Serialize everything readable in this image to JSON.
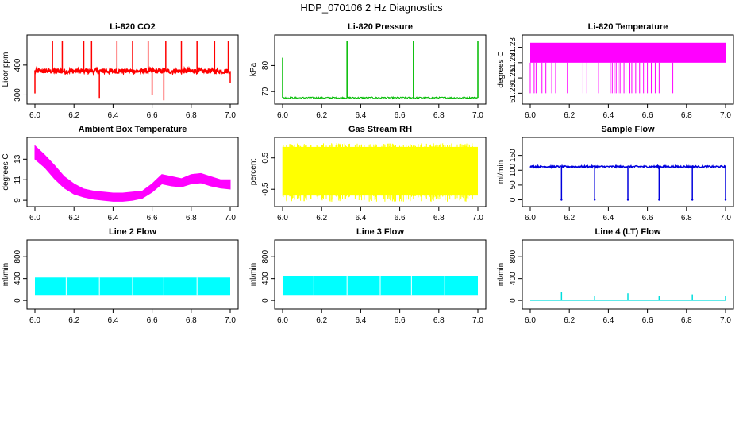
{
  "title": "HDP_070106  2 Hz Diagnostics",
  "chart_data": [
    {
      "id": "co2",
      "type": "line",
      "title": "Li-820 CO2",
      "ylabel": "Licor ppm",
      "xlim": [
        6.0,
        7.0
      ],
      "ylim": [
        280,
        490
      ],
      "xticks": [
        "6.0",
        "6.2",
        "6.4",
        "6.6",
        "6.8",
        "7.0"
      ],
      "yticks": [
        "300",
        "400"
      ],
      "color": "#ff0000",
      "baseline": 380,
      "noise": 8,
      "spikes": [
        {
          "x": 6.0,
          "y": 305
        },
        {
          "x": 6.09,
          "y": 480
        },
        {
          "x": 6.14,
          "y": 480
        },
        {
          "x": 6.25,
          "y": 480
        },
        {
          "x": 6.29,
          "y": 480
        },
        {
          "x": 6.33,
          "y": 290
        },
        {
          "x": 6.42,
          "y": 480
        },
        {
          "x": 6.5,
          "y": 480
        },
        {
          "x": 6.58,
          "y": 480
        },
        {
          "x": 6.6,
          "y": 300
        },
        {
          "x": 6.66,
          "y": 282
        },
        {
          "x": 6.67,
          "y": 480
        },
        {
          "x": 6.75,
          "y": 480
        },
        {
          "x": 6.83,
          "y": 480
        },
        {
          "x": 6.92,
          "y": 480
        },
        {
          "x": 6.99,
          "y": 480
        },
        {
          "x": 7.0,
          "y": 340
        }
      ]
    },
    {
      "id": "pressure",
      "type": "line",
      "title": "Li-820 Pressure",
      "ylabel": "kPa",
      "xlim": [
        6.0,
        7.0
      ],
      "ylim": [
        66.4,
        90.5
      ],
      "xticks": [
        "6.0",
        "6.2",
        "6.4",
        "6.6",
        "6.8",
        "7.0"
      ],
      "yticks": [
        "70",
        "80"
      ],
      "color": "#00bb00",
      "baseline": 67.6,
      "noise": 0.3,
      "spikes": [
        {
          "x": 6.0,
          "y": 83
        },
        {
          "x": 6.33,
          "y": 89.5
        },
        {
          "x": 6.67,
          "y": 89.5
        },
        {
          "x": 7.0,
          "y": 89.5
        }
      ]
    },
    {
      "id": "licor-temp",
      "type": "line",
      "title": "Li-820 Temperature",
      "ylabel": "degrees C",
      "xlim": [
        6.0,
        7.0
      ],
      "ylim": [
        51.195,
        51.236
      ],
      "xticks": [
        "6.0",
        "6.2",
        "6.4",
        "6.6",
        "6.8",
        "7.0"
      ],
      "yticks": [
        "51.20",
        "51.21",
        "51.22",
        "51.23"
      ],
      "color": "#ff00ff",
      "band": [
        51.22,
        51.233
      ],
      "drops": [
        6.0,
        6.02,
        6.03,
        6.06,
        6.08,
        6.11,
        6.13,
        6.19,
        6.27,
        6.29,
        6.35,
        6.41,
        6.42,
        6.43,
        6.44,
        6.45,
        6.46,
        6.48,
        6.49,
        6.51,
        6.52,
        6.54,
        6.56,
        6.58,
        6.6,
        6.62,
        6.64,
        6.66,
        6.73
      ],
      "drop_to": 51.2
    },
    {
      "id": "box-temp",
      "type": "area",
      "title": "Ambient Box Temperature",
      "ylabel": "degrees C",
      "xlim": [
        6.0,
        7.0
      ],
      "ylim": [
        8.7,
        14.8
      ],
      "xticks": [
        "6.0",
        "6.2",
        "6.4",
        "6.6",
        "6.8",
        "7.0"
      ],
      "yticks": [
        "9",
        "11",
        "13"
      ],
      "color": "#ff00ff",
      "x": [
        6.0,
        6.05,
        6.1,
        6.15,
        6.2,
        6.25,
        6.3,
        6.35,
        6.4,
        6.45,
        6.5,
        6.55,
        6.6,
        6.65,
        6.7,
        6.75,
        6.8,
        6.85,
        6.9,
        6.95,
        7.0
      ],
      "upper": [
        14.3,
        13.4,
        12.4,
        11.3,
        10.6,
        10.1,
        9.9,
        9.8,
        9.7,
        9.7,
        9.8,
        9.9,
        10.6,
        11.5,
        11.3,
        11.1,
        11.5,
        11.6,
        11.3,
        11.0,
        11.0
      ],
      "lower": [
        13.0,
        12.2,
        11.1,
        10.2,
        9.6,
        9.3,
        9.1,
        9.0,
        8.9,
        8.9,
        9.0,
        9.2,
        9.8,
        10.6,
        10.4,
        10.3,
        10.6,
        10.7,
        10.4,
        10.2,
        10.1
      ]
    },
    {
      "id": "rh",
      "type": "area",
      "title": "Gas Stream RH",
      "ylabel": "percent",
      "xlim": [
        6.0,
        7.0
      ],
      "ylim": [
        -0.95,
        1.05
      ],
      "xticks": [
        "6.0",
        "6.2",
        "6.4",
        "6.6",
        "6.8",
        "7.0"
      ],
      "yticks": [
        "-0.5",
        "0.5"
      ],
      "color": "#ffff00",
      "band": [
        -0.7,
        0.85
      ],
      "extreme": [
        -0.9,
        0.97
      ]
    },
    {
      "id": "sample-flow",
      "type": "line",
      "title": "Sample Flow",
      "ylabel": "ml/min",
      "xlim": [
        6.0,
        7.0
      ],
      "ylim": [
        -12,
        200
      ],
      "xticks": [
        "6.0",
        "6.2",
        "6.4",
        "6.6",
        "6.8",
        "7.0"
      ],
      "yticks": [
        "0",
        "50",
        "100",
        "150"
      ],
      "color": "#0000dd",
      "baseline": 112,
      "noise": 3,
      "dips": [
        6.16,
        6.33,
        6.5,
        6.66,
        6.83,
        7.0
      ],
      "dip_to": 0
    },
    {
      "id": "line2-flow",
      "type": "area",
      "title": "Line 2 Flow",
      "ylabel": "ml/min",
      "xlim": [
        6.0,
        7.0
      ],
      "ylim": [
        -100,
        1050
      ],
      "xticks": [
        "6.0",
        "6.2",
        "6.4",
        "6.6",
        "6.8",
        "7.0"
      ],
      "yticks": [
        "0",
        "400",
        "800"
      ],
      "color": "#00ffff",
      "band": [
        100,
        420
      ],
      "gaps": [
        6.16,
        6.33,
        6.5,
        6.66,
        6.83
      ]
    },
    {
      "id": "line3-flow",
      "type": "area",
      "title": "Line 3 Flow",
      "ylabel": "ml/min",
      "xlim": [
        6.0,
        7.0
      ],
      "ylim": [
        -100,
        1050
      ],
      "xticks": [
        "6.0",
        "6.2",
        "6.4",
        "6.6",
        "6.8",
        "7.0"
      ],
      "yticks": [
        "0",
        "400",
        "800"
      ],
      "color": "#00ffff",
      "band": [
        100,
        440
      ],
      "gaps": [
        6.16,
        6.33,
        6.5,
        6.66,
        6.83
      ]
    },
    {
      "id": "line4-flow",
      "type": "line",
      "title": "Line 4 (LT) Flow",
      "ylabel": "ml/min",
      "xlim": [
        6.0,
        7.0
      ],
      "ylim": [
        -100,
        1050
      ],
      "xticks": [
        "6.0",
        "6.2",
        "6.4",
        "6.6",
        "6.8",
        "7.0"
      ],
      "yticks": [
        "0",
        "400",
        "800"
      ],
      "color": "#00dddd",
      "baseline": 0,
      "noise": 0,
      "spikes": [
        {
          "x": 6.16,
          "y": 150
        },
        {
          "x": 6.33,
          "y": 80
        },
        {
          "x": 6.5,
          "y": 130
        },
        {
          "x": 6.66,
          "y": 80
        },
        {
          "x": 6.83,
          "y": 110
        },
        {
          "x": 7.0,
          "y": 80
        }
      ]
    }
  ]
}
